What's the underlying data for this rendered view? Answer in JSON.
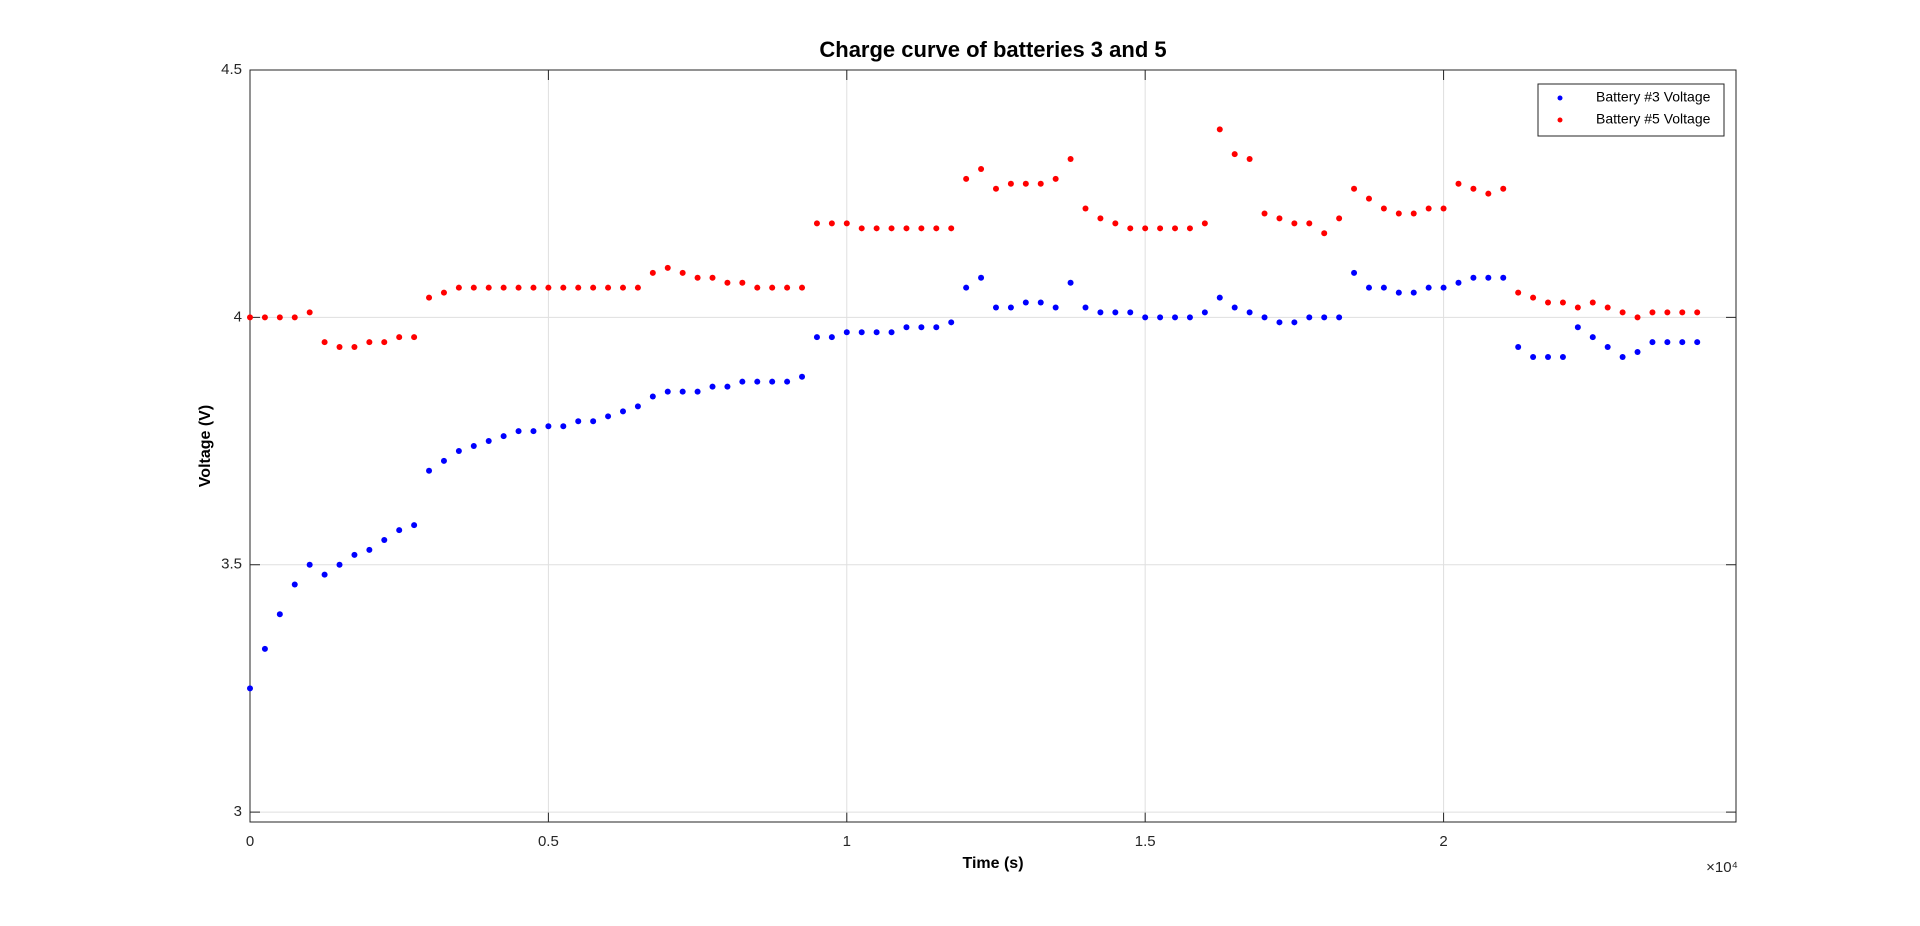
{
  "chart_data": {
    "type": "scatter",
    "title": "Charge curve of batteries 3 and 5",
    "xlabel": "Time (s)",
    "ylabel": "Voltage (V)",
    "x_exponent_label": "×10⁴",
    "x": [
      0,
      250,
      500,
      750,
      1000,
      1250,
      1500,
      1750,
      2000,
      2250,
      2500,
      2750,
      3000,
      3250,
      3500,
      3750,
      4000,
      4250,
      4500,
      4750,
      5000,
      5250,
      5500,
      5750,
      6000,
      6250,
      6500,
      6750,
      7000,
      7250,
      7500,
      7750,
      8000,
      8250,
      8500,
      8750,
      9000,
      9250,
      9500,
      9750,
      10000,
      10250,
      10500,
      10750,
      11000,
      11250,
      11500,
      11750,
      12000,
      12250,
      12500,
      12750,
      13000,
      13250,
      13500,
      13750,
      14000,
      14250,
      14500,
      14750,
      15000,
      15250,
      15500,
      15750,
      16000,
      16250,
      16500,
      16750,
      17000,
      17250,
      17500,
      17750,
      18000,
      18250,
      18500,
      18750,
      19000,
      19250,
      19500,
      19750,
      20000,
      20250,
      20500,
      20750,
      21000,
      21250,
      21500,
      21750,
      22000,
      22250,
      22500,
      22750,
      23000,
      23250,
      23500,
      23750,
      24000,
      24250
    ],
    "series": [
      {
        "name": "Battery #3 Voltage",
        "color": "#0000ff",
        "values": [
          3.25,
          3.33,
          3.4,
          3.46,
          3.5,
          3.48,
          3.5,
          3.52,
          3.53,
          3.55,
          3.57,
          3.58,
          3.69,
          3.71,
          3.73,
          3.74,
          3.75,
          3.76,
          3.77,
          3.77,
          3.78,
          3.78,
          3.79,
          3.79,
          3.8,
          3.81,
          3.82,
          3.84,
          3.85,
          3.85,
          3.85,
          3.86,
          3.86,
          3.87,
          3.87,
          3.87,
          3.87,
          3.88,
          3.96,
          3.96,
          3.97,
          3.97,
          3.97,
          3.97,
          3.98,
          3.98,
          3.98,
          3.99,
          4.06,
          4.08,
          4.02,
          4.02,
          4.03,
          4.03,
          4.02,
          4.07,
          4.02,
          4.01,
          4.01,
          4.01,
          4.0,
          4.0,
          4.0,
          4.0,
          4.01,
          4.04,
          4.02,
          4.01,
          4.0,
          3.99,
          3.99,
          4.0,
          4.0,
          4.0,
          4.09,
          4.06,
          4.06,
          4.05,
          4.05,
          4.06,
          4.06,
          4.07,
          4.08,
          4.08,
          4.08,
          3.94,
          3.92,
          3.92,
          3.92,
          3.98,
          3.96,
          3.94,
          3.92,
          3.93,
          3.95,
          3.95,
          3.95,
          3.95
        ]
      },
      {
        "name": "Battery #5 Voltage",
        "color": "#ff0000",
        "values": [
          4.0,
          4.0,
          4.0,
          4.0,
          4.01,
          3.95,
          3.94,
          3.94,
          3.95,
          3.95,
          3.96,
          3.96,
          4.04,
          4.05,
          4.06,
          4.06,
          4.06,
          4.06,
          4.06,
          4.06,
          4.06,
          4.06,
          4.06,
          4.06,
          4.06,
          4.06,
          4.06,
          4.09,
          4.1,
          4.09,
          4.08,
          4.08,
          4.07,
          4.07,
          4.06,
          4.06,
          4.06,
          4.06,
          4.19,
          4.19,
          4.19,
          4.18,
          4.18,
          4.18,
          4.18,
          4.18,
          4.18,
          4.18,
          4.28,
          4.3,
          4.26,
          4.27,
          4.27,
          4.27,
          4.28,
          4.32,
          4.22,
          4.2,
          4.19,
          4.18,
          4.18,
          4.18,
          4.18,
          4.18,
          4.19,
          4.38,
          4.33,
          4.32,
          4.21,
          4.2,
          4.19,
          4.19,
          4.17,
          4.2,
          4.26,
          4.24,
          4.22,
          4.21,
          4.21,
          4.22,
          4.22,
          4.27,
          4.26,
          4.25,
          4.26,
          4.05,
          4.04,
          4.03,
          4.03,
          4.02,
          4.03,
          4.02,
          4.01,
          4.0,
          4.01,
          4.01,
          4.01,
          4.01
        ]
      }
    ],
    "xlim": [
      0,
      24900
    ],
    "ylim": [
      2.98,
      4.5
    ],
    "xticks": [
      0,
      {
        "value": 5000,
        "label": "0.5"
      },
      {
        "value": 10000,
        "label": "1"
      },
      {
        "value": 15000,
        "label": "1.5"
      },
      {
        "value": 20000,
        "label": "2"
      }
    ],
    "yticks": [
      3,
      3.5,
      4,
      4.5
    ],
    "grid": true,
    "legend": "northeast"
  }
}
